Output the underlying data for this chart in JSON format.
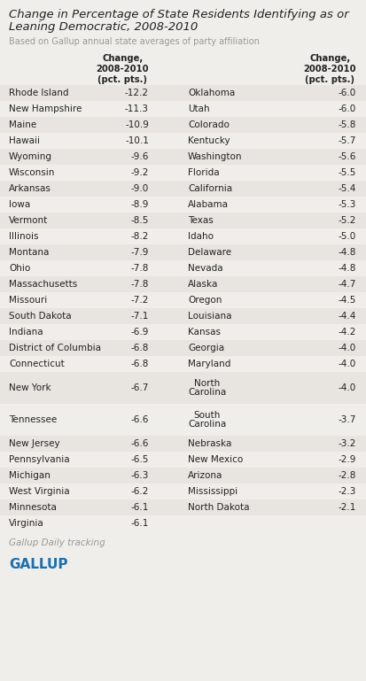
{
  "title_line1": "Change in Percentage of State Residents Identifying as or",
  "title_line2": "Leaning Democratic, 2008-2010",
  "subtitle": "Based on Gallup annual state averages of party affiliation",
  "footer": "Gallup Daily tracking",
  "brand": "GALLUP",
  "col_header": "Change,\n2008-2010\n(pct. pts.)",
  "left_states": [
    [
      "Rhode Island",
      "-12.2"
    ],
    [
      "New Hampshire",
      "-11.3"
    ],
    [
      "Maine",
      "-10.9"
    ],
    [
      "Hawaii",
      "-10.1"
    ],
    [
      "Wyoming",
      "-9.6"
    ],
    [
      "Wisconsin",
      "-9.2"
    ],
    [
      "Arkansas",
      "-9.0"
    ],
    [
      "Iowa",
      "-8.9"
    ],
    [
      "Vermont",
      "-8.5"
    ],
    [
      "Illinois",
      "-8.2"
    ],
    [
      "Montana",
      "-7.9"
    ],
    [
      "Ohio",
      "-7.8"
    ],
    [
      "Massachusetts",
      "-7.8"
    ],
    [
      "Missouri",
      "-7.2"
    ],
    [
      "South Dakota",
      "-7.1"
    ],
    [
      "Indiana",
      "-6.9"
    ],
    [
      "District of Columbia",
      "-6.8"
    ],
    [
      "Connecticut",
      "-6.8"
    ],
    [
      "New York",
      "-6.7"
    ],
    [
      "Tennessee",
      "-6.6"
    ],
    [
      "New Jersey",
      "-6.6"
    ],
    [
      "Pennsylvania",
      "-6.5"
    ],
    [
      "Michigan",
      "-6.3"
    ],
    [
      "West Virginia",
      "-6.2"
    ],
    [
      "Minnesota",
      "-6.1"
    ],
    [
      "Virginia",
      "-6.1"
    ]
  ],
  "right_states": [
    [
      "Oklahoma",
      "-6.0"
    ],
    [
      "Utah",
      "-6.0"
    ],
    [
      "Colorado",
      "-5.8"
    ],
    [
      "Kentucky",
      "-5.7"
    ],
    [
      "Washington",
      "-5.6"
    ],
    [
      "Florida",
      "-5.5"
    ],
    [
      "California",
      "-5.4"
    ],
    [
      "Alabama",
      "-5.3"
    ],
    [
      "Texas",
      "-5.2"
    ],
    [
      "Idaho",
      "-5.0"
    ],
    [
      "Delaware",
      "-4.8"
    ],
    [
      "Nevada",
      "-4.8"
    ],
    [
      "Alaska",
      "-4.7"
    ],
    [
      "Oregon",
      "-4.5"
    ],
    [
      "Louisiana",
      "-4.4"
    ],
    [
      "Kansas",
      "-4.2"
    ],
    [
      "Georgia",
      "-4.0"
    ],
    [
      "Maryland",
      "-4.0"
    ],
    [
      "North\nCarolina",
      "-4.0"
    ],
    [
      "South\nCarolina",
      "-3.7"
    ],
    [
      "Nebraska",
      "-3.2"
    ],
    [
      "New Mexico",
      "-2.9"
    ],
    [
      "Arizona",
      "-2.8"
    ],
    [
      "Mississippi",
      "-2.3"
    ],
    [
      "North Dakota",
      "-2.1"
    ]
  ],
  "bg_color": "#f0eeea",
  "row_even_color": "#e8e5e1",
  "row_odd_color": "#f0eeea",
  "text_color": "#222222",
  "title_color": "#222222",
  "subtitle_color": "#999999",
  "footer_color": "#999999",
  "brand_color": "#1a6faf"
}
